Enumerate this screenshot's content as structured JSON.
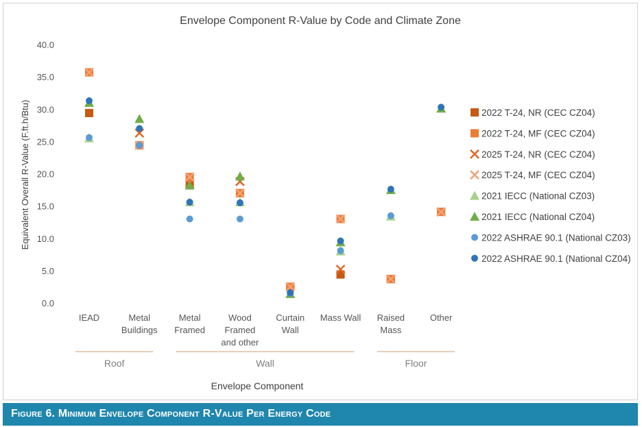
{
  "figure_caption": "Figure 6. Minimum Envelope Component R-Value Per Energy Code",
  "colors": {
    "caption_background": "#1f86ad",
    "group_rule": "#d7b48a",
    "axis_text": "#555555",
    "grid": "#d9d9d9"
  },
  "chart_data": {
    "type": "scatter",
    "title": "Envelope Component R-Value by Code and Climate Zone",
    "xlabel": "Envelope Component",
    "ylabel": "Equivalent Overall R-Value (F.ft.h/Btu)",
    "ylim": [
      0,
      40
    ],
    "yticks": [
      "0.0",
      "5.0",
      "10.0",
      "15.0",
      "20.0",
      "25.0",
      "30.0",
      "35.0",
      "40.0"
    ],
    "grid": false,
    "legend_position": "right",
    "categories": [
      {
        "lines": [
          "IEAD"
        ]
      },
      {
        "lines": [
          "Metal",
          "Buildings"
        ]
      },
      {
        "lines": [
          "Metal",
          "Framed"
        ]
      },
      {
        "lines": [
          "Wood",
          "Framed",
          "and other"
        ]
      },
      {
        "lines": [
          "Curtain",
          "Wall"
        ]
      },
      {
        "lines": [
          "Mass Wall"
        ]
      },
      {
        "lines": [
          "Raised",
          "Mass"
        ]
      },
      {
        "lines": [
          "Other"
        ]
      }
    ],
    "groups": [
      {
        "label": "Roof",
        "from": 0,
        "to": 1
      },
      {
        "label": "Wall",
        "from": 2,
        "to": 5
      },
      {
        "label": "Floor",
        "from": 6,
        "to": 7
      }
    ],
    "series": [
      {
        "name": "2022 T-24, NR (CEC CZ04)",
        "marker": "square",
        "color": "#c55a11",
        "values": [
          29.4,
          null,
          18.2,
          17.0,
          2.5,
          4.4,
          3.7,
          14.1
        ]
      },
      {
        "name": "2022 T-24, MF (CEC CZ04)",
        "marker": "square",
        "color": "#ed7d31",
        "values": [
          35.7,
          24.4,
          19.5,
          17.0,
          2.5,
          13.0,
          3.7,
          14.1
        ]
      },
      {
        "name": "2025 T-24, NR (CEC CZ04)",
        "marker": "x",
        "color": "#e06a2c",
        "values": [
          null,
          26.3,
          18.5,
          18.8,
          2.5,
          5.2,
          3.7,
          14.1
        ]
      },
      {
        "name": "2025 T-24, MF (CEC CZ04)",
        "marker": "x",
        "color": "#f4a27a",
        "values": [
          35.7,
          24.4,
          19.5,
          17.0,
          2.5,
          13.0,
          3.7,
          14.1
        ]
      },
      {
        "name": "2021 IECC (National CZ03)",
        "marker": "triangle",
        "color": "#a9d18e",
        "values": [
          25.5,
          null,
          15.6,
          15.6,
          1.4,
          8.0,
          13.4,
          null
        ]
      },
      {
        "name": "2021 IECC (National CZ04)",
        "marker": "triangle",
        "color": "#70ad47",
        "values": [
          31.0,
          28.5,
          18.2,
          19.6,
          1.4,
          9.4,
          17.5,
          30.1
        ]
      },
      {
        "name": "2022 ASHRAE 90.1 (National CZ03)",
        "marker": "circle",
        "color": "#5b9bd5",
        "values": [
          25.6,
          24.4,
          13.0,
          13.0,
          1.5,
          8.1,
          13.5,
          null
        ]
      },
      {
        "name": "2022 ASHRAE 90.1 (National CZ04)",
        "marker": "circle",
        "color": "#2e75b6",
        "values": [
          31.3,
          27.0,
          15.6,
          15.5,
          1.6,
          9.6,
          17.6,
          30.3
        ]
      }
    ]
  }
}
